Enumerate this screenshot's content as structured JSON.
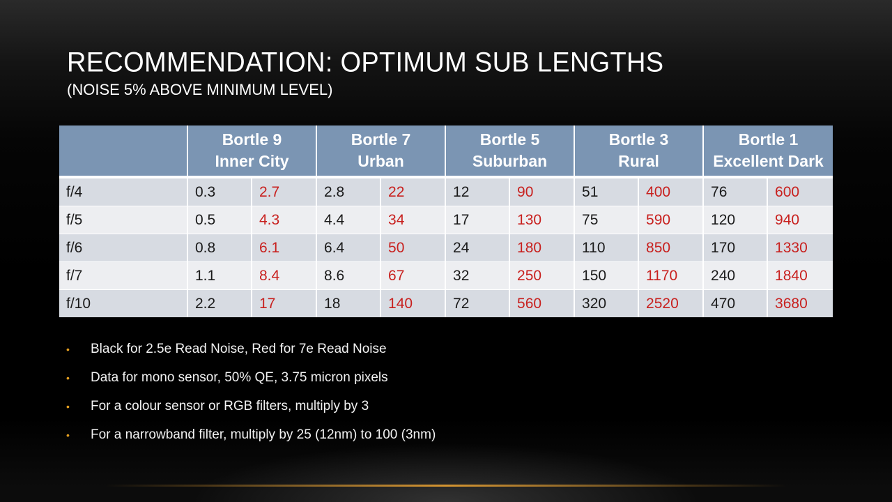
{
  "slide": {
    "title": "RECOMMENDATION: OPTIMUM SUB LENGTHS",
    "subtitle": "(NOISE 5% ABOVE MINIMUM LEVEL)"
  },
  "table": {
    "header": [
      {
        "line1": "Bortle 9",
        "line2": "Inner City"
      },
      {
        "line1": "Bortle 7",
        "line2": "Urban"
      },
      {
        "line1": "Bortle 5",
        "line2": "Suburban"
      },
      {
        "line1": "Bortle 3",
        "line2": "Rural"
      },
      {
        "line1": "Bortle 1",
        "line2": "Excellent Dark"
      }
    ],
    "rows": [
      {
        "label": "f/4",
        "values": [
          "0.3",
          "2.7",
          "2.8",
          "22",
          "12",
          "90",
          "51",
          "400",
          "76",
          "600"
        ]
      },
      {
        "label": "f/5",
        "values": [
          "0.5",
          "4.3",
          "4.4",
          "34",
          "17",
          "130",
          "75",
          "590",
          "120",
          "940"
        ]
      },
      {
        "label": "f/6",
        "values": [
          "0.8",
          "6.1",
          "6.4",
          "50",
          "24",
          "180",
          "110",
          "850",
          "170",
          "1330"
        ]
      },
      {
        "label": "f/7",
        "values": [
          "1.1",
          "8.4",
          "8.6",
          "67",
          "32",
          "250",
          "150",
          "1170",
          "240",
          "1840"
        ]
      },
      {
        "label": "f/10",
        "values": [
          "2.2",
          "17",
          "18",
          "140",
          "72",
          "560",
          "320",
          "2520",
          "470",
          "3680"
        ]
      }
    ]
  },
  "bullets": [
    "Black for 2.5e Read Noise, Red for 7e Read Noise",
    "Data for mono sensor, 50% QE, 3.75 micron pixels",
    "For a colour sensor or RGB filters, multiply by 3",
    "For a narrowband filter, multiply by 25 (12nm) to 100 (3nm)"
  ],
  "colors": {
    "header_bg": "#7b95b3",
    "row_dark": "#d7dbe2",
    "row_light": "#edeef1",
    "red_value": "#c8201e",
    "bullet_accent": "#e6a020"
  },
  "icons": {
    "bullet": "•"
  }
}
